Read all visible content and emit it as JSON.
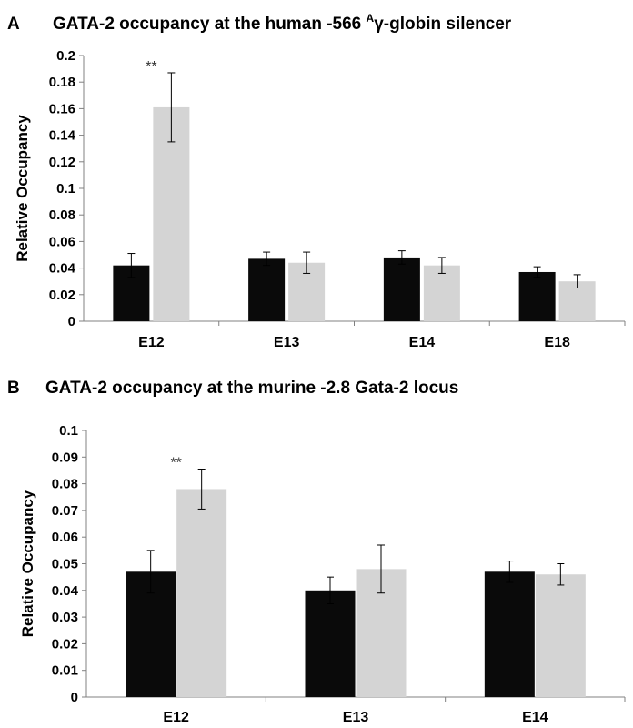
{
  "panels": [
    {
      "letter": "A",
      "title_pre": "GATA-2 occupancy at the human -566 ",
      "title_sup": "A",
      "title_post": "γ-globin silencer"
    },
    {
      "letter": "B",
      "title_pre": "GATA-2 occupancy at the murine -2.8 Gata-2 locus",
      "title_sup": "",
      "title_post": ""
    }
  ],
  "colors": {
    "series1": "#0a0a0a",
    "series2": "#d4d4d4",
    "axis": "#808080"
  },
  "chart_data": [
    {
      "type": "bar",
      "title": "GATA-2 occupancy at the human -566 Aγ-globin silencer",
      "categories": [
        "E12",
        "E13",
        "E14",
        "E18"
      ],
      "series": [
        {
          "values": [
            0.042,
            0.047,
            0.048,
            0.037
          ],
          "errors": [
            0.009,
            0.005,
            0.005,
            0.004
          ]
        },
        {
          "values": [
            0.161,
            0.044,
            0.042,
            0.03
          ],
          "errors": [
            0.026,
            0.008,
            0.006,
            0.005
          ]
        }
      ],
      "xlabel": "",
      "ylabel": "Relative Occupancy",
      "ylim": [
        0,
        0.2
      ],
      "yticks": [
        "0",
        "0.02",
        "0.04",
        "0.06",
        "0.08",
        "0.1",
        "0.12",
        "0.14",
        "0.16",
        "0.18",
        "0.2"
      ],
      "annotations": [
        {
          "text": "**",
          "category": "E12"
        }
      ],
      "grid": false,
      "legend": "none"
    },
    {
      "type": "bar",
      "title": "GATA-2 occupancy at the murine -2.8 Gata-2 locus",
      "categories": [
        "E12",
        "E13",
        "E14"
      ],
      "series": [
        {
          "values": [
            0.047,
            0.04,
            0.047
          ],
          "errors": [
            0.008,
            0.005,
            0.004
          ]
        },
        {
          "values": [
            0.078,
            0.048,
            0.046
          ],
          "errors": [
            0.0075,
            0.009,
            0.004
          ]
        }
      ],
      "xlabel": "",
      "ylabel": "Relative Occupancy",
      "ylim": [
        0,
        0.1
      ],
      "yticks": [
        "0",
        "0.01",
        "0.02",
        "0.03",
        "0.04",
        "0.05",
        "0.06",
        "0.07",
        "0.08",
        "0.09",
        "0.1"
      ],
      "annotations": [
        {
          "text": "**",
          "category": "E12"
        }
      ],
      "grid": false,
      "legend": "none"
    }
  ]
}
